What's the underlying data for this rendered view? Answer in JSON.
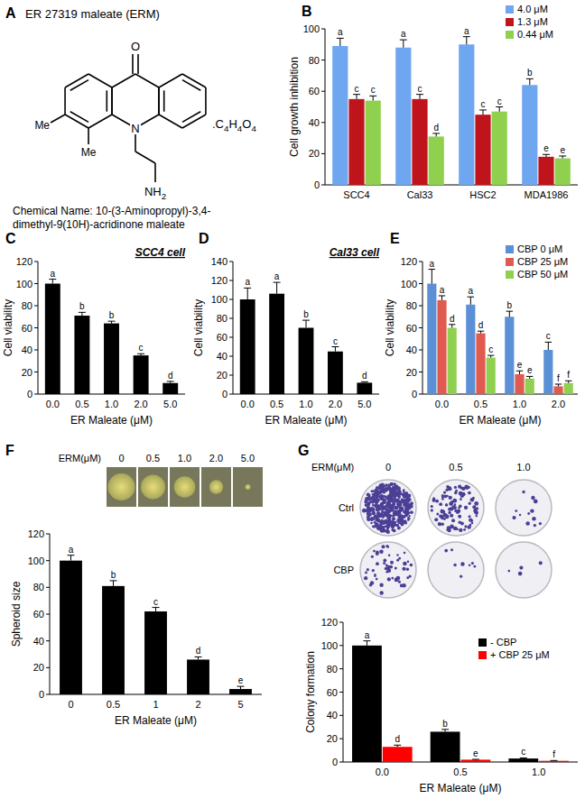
{
  "structure": {
    "panel": "A",
    "title": "ER 27319 maleate (ERM)",
    "oxygen": "O",
    "nitrogen": "N",
    "methyl": [
      "Me",
      "Me"
    ],
    "amine": "NH2",
    "salt": ".C4H4O4",
    "chemical_name": [
      "Chemical Name: 10-(3-Aminopropyl)-3,4-",
      "dimethyl-9(10H)-acridinone maleate"
    ]
  },
  "chart_data": [
    {
      "panel": "B",
      "type": "bar",
      "y_label": "Cell growth inhibition",
      "categories": [
        "SCC4",
        "Cal33",
        "HSC2",
        "MDA1986"
      ],
      "ylim": [
        0,
        100
      ],
      "yticks": [
        0,
        20,
        40,
        60,
        80,
        100
      ],
      "legend": "top-right",
      "series": [
        {
          "name": "4.0 μM",
          "color": "#6ea6f0",
          "values": [
            89,
            88,
            90,
            64
          ],
          "errors": [
            5,
            5,
            5,
            4
          ],
          "letters": [
            "a",
            "a",
            "a",
            "b"
          ]
        },
        {
          "name": "1.3 μM",
          "color": "#c0141c",
          "values": [
            55,
            55,
            45,
            18
          ],
          "errors": [
            3,
            3,
            3,
            1.5
          ],
          "letters": [
            "c",
            "c",
            "c",
            "e"
          ]
        },
        {
          "name": "0.44 μM",
          "color": "#8fd14f",
          "values": [
            54,
            31,
            47,
            17
          ],
          "errors": [
            3,
            2,
            3,
            1.5
          ],
          "letters": [
            "c",
            "d",
            "c",
            "e"
          ]
        }
      ]
    },
    {
      "panel": "C",
      "type": "bar",
      "title": "SCC4 cell",
      "y_label": "Cell viability",
      "x_label": "ER Maleate (μM)",
      "categories": [
        "0.0",
        "0.5",
        "1.0",
        "2.0",
        "5.0"
      ],
      "values": [
        100,
        71,
        64,
        35,
        10
      ],
      "errors": [
        4,
        3,
        2,
        1.5,
        1.5
      ],
      "letters": [
        "a",
        "b",
        "b",
        "c",
        "d"
      ],
      "color": "#000000",
      "ylim": [
        0,
        120
      ],
      "yticks": [
        0,
        20,
        40,
        60,
        80,
        100,
        120
      ]
    },
    {
      "panel": "D",
      "type": "bar",
      "title": "Cal33 cell",
      "y_label": "Cell viability",
      "x_label": "ER Maleate (μM)",
      "categories": [
        "0.0",
        "0.5",
        "1.0",
        "2.0",
        "5.0"
      ],
      "values": [
        100,
        106,
        70,
        45,
        12
      ],
      "errors": [
        12,
        12,
        8,
        5,
        1
      ],
      "letters": [
        "a",
        "a",
        "b",
        "c",
        "d"
      ],
      "color": "#000000",
      "ylim": [
        0,
        140
      ],
      "yticks": [
        0,
        20,
        40,
        60,
        80,
        100,
        120,
        140
      ]
    },
    {
      "panel": "E",
      "type": "bar",
      "y_label": "Cell viability",
      "x_label": "ER Maleate (μM)",
      "categories": [
        "0.0",
        "0.5",
        "1.0",
        "2.0"
      ],
      "ylim": [
        0,
        120
      ],
      "yticks": [
        0,
        20,
        40,
        60,
        80,
        100,
        120
      ],
      "legend": "top-right",
      "series": [
        {
          "name": "CBP 0 μM",
          "color": "#5b8fd6",
          "values": [
            100,
            81,
            70,
            40
          ],
          "errors": [
            13,
            7,
            5,
            7
          ],
          "letters": [
            "a",
            "a",
            "b",
            "c"
          ]
        },
        {
          "name": "CBP 25 μM",
          "color": "#e05a4f",
          "values": [
            85,
            55,
            18,
            7
          ],
          "errors": [
            4,
            2,
            3,
            2
          ],
          "letters": [
            "a",
            "d",
            "e",
            "f"
          ]
        },
        {
          "name": "CBP 50 μM",
          "color": "#90d050",
          "values": [
            60,
            33,
            14,
            10
          ],
          "errors": [
            3,
            2,
            2,
            2
          ],
          "letters": [
            "d",
            "c",
            "e",
            "f"
          ]
        }
      ]
    },
    {
      "panel": "F",
      "type": "bar",
      "y_label": "Spheroid size",
      "x_label": "ER Maleate (μM)",
      "categories": [
        "0",
        "0.5",
        "1",
        "2",
        "5"
      ],
      "values": [
        100,
        81,
        62,
        26,
        4
      ],
      "errors": [
        4,
        4,
        3,
        2,
        2
      ],
      "letters": [
        "a",
        "b",
        "c",
        "d",
        "e"
      ],
      "color": "#000000",
      "ylim": [
        0,
        120
      ],
      "yticks": [
        0,
        20,
        40,
        60,
        80,
        100,
        120
      ]
    },
    {
      "panel": "G",
      "type": "bar",
      "y_label": "Colony formation",
      "x_label": "ER Maleate (μM)",
      "categories": [
        "0.0",
        "0.5",
        "1.0"
      ],
      "ylim": [
        0,
        120
      ],
      "yticks": [
        0,
        20,
        40,
        60,
        80,
        100,
        120
      ],
      "legend": "top-right",
      "series": [
        {
          "name": "- CBP",
          "color": "#000000",
          "values": [
            100,
            26,
            3
          ],
          "errors": [
            4,
            2,
            0.5
          ],
          "letters": [
            "a",
            "b",
            "c"
          ]
        },
        {
          "name": "+ CBP 25 μM",
          "color": "#ff0000",
          "values": [
            13,
            2,
            1
          ],
          "errors": [
            1.5,
            0.3,
            0.3
          ],
          "letters": [
            "d",
            "e",
            "f"
          ]
        }
      ]
    }
  ],
  "spheroid_images": {
    "label": "ERM(μM)",
    "doses": [
      "0",
      "0.5",
      "1.0",
      "2.0",
      "5.0"
    ]
  },
  "plate_images": {
    "label": "ERM(μM)",
    "doses": [
      "0",
      "0.5",
      "1.0"
    ],
    "rows": [
      "Ctrl",
      "CBP"
    ]
  }
}
